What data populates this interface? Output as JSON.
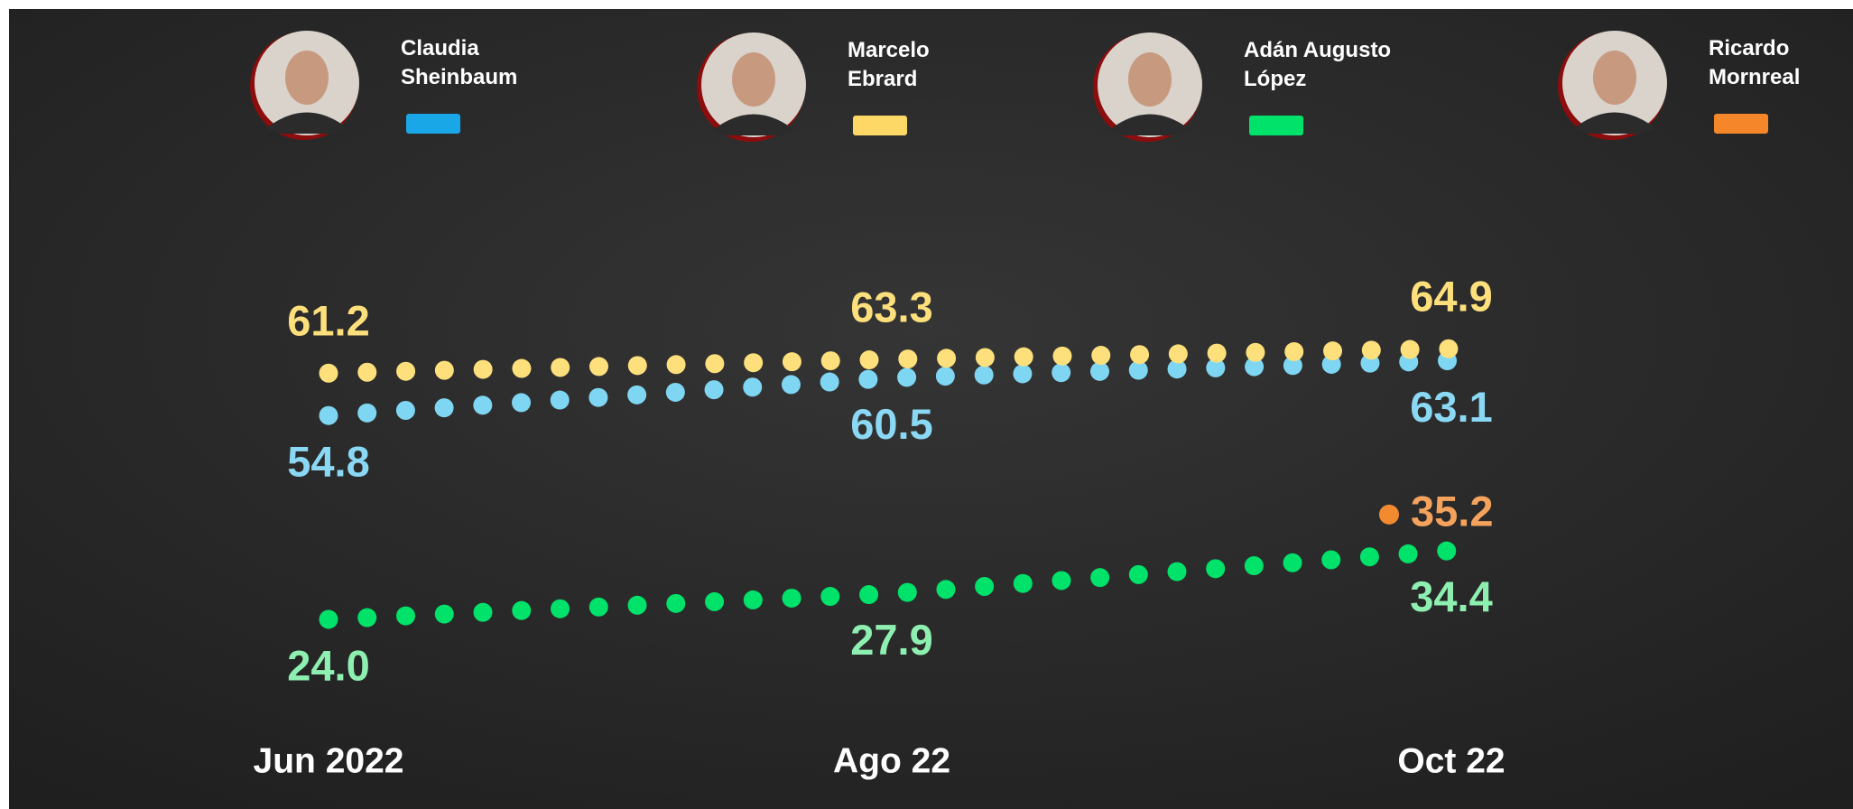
{
  "chart_data": {
    "type": "line",
    "x": [
      "Jun 2022",
      "Ago 22",
      "Oct 22"
    ],
    "ylim": [
      10,
      80
    ],
    "series": [
      {
        "name": "Claudia Sheinbaum",
        "color": "#7fd6f2",
        "legend_color": "#1aa7e8",
        "label_color": "#8ad8f4",
        "values": [
          54.8,
          60.5,
          63.1
        ],
        "value_labels": [
          "54.8",
          "60.5",
          "63.1"
        ]
      },
      {
        "name": "Marcelo Ebrard",
        "color": "#fde07c",
        "legend_color": "#fdd866",
        "label_color": "#fde07c",
        "values": [
          61.2,
          63.3,
          64.9
        ],
        "value_labels": [
          "61.2",
          "63.3",
          "64.9"
        ]
      },
      {
        "name": "Adán Augusto López",
        "color": "#00e26a",
        "legend_color": "#00e26a",
        "label_color": "#8ef0b0",
        "values": [
          24,
          27.9,
          34.4
        ],
        "value_labels": [
          "24.0",
          "27.9",
          "34.4"
        ]
      },
      {
        "name": "Ricardo Mornreal",
        "color": "#f28a30",
        "legend_color": "#f5862a",
        "label_color": "#f5a35c",
        "values": [
          null,
          null,
          35.2
        ],
        "value_labels": [
          null,
          null,
          "35.2"
        ]
      }
    ]
  }
}
